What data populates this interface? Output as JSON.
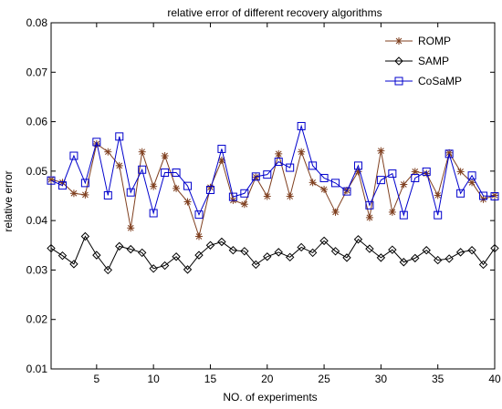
{
  "chart_data": {
    "type": "line",
    "title": "relative error of different recovery algorithms",
    "xlabel": "NO. of experiments",
    "ylabel": "relative error",
    "xlim": [
      1,
      40
    ],
    "ylim": [
      0.01,
      0.08
    ],
    "xticks": [
      5,
      10,
      15,
      20,
      25,
      30,
      35,
      40
    ],
    "yticks": [
      0.01,
      0.02,
      0.03,
      0.04,
      0.05,
      0.06,
      0.07,
      0.08
    ],
    "ytick_labels": [
      "0.01",
      "0.02",
      "0.03",
      "0.04",
      "0.05",
      "0.06",
      "0.07",
      "0.08"
    ],
    "grid": false,
    "legend_position": "top-right",
    "x": [
      1,
      2,
      3,
      4,
      5,
      6,
      7,
      8,
      9,
      10,
      11,
      12,
      13,
      14,
      15,
      16,
      17,
      18,
      19,
      20,
      21,
      22,
      23,
      24,
      25,
      26,
      27,
      28,
      29,
      30,
      31,
      32,
      33,
      34,
      35,
      36,
      37,
      38,
      39,
      40
    ],
    "series": [
      {
        "name": "ROMP",
        "color": "#7f3f1f",
        "marker": "asterisk",
        "values": [
          0.0483,
          0.0477,
          0.0455,
          0.0452,
          0.0555,
          0.0539,
          0.0511,
          0.0385,
          0.0539,
          0.0469,
          0.0531,
          0.0465,
          0.0438,
          0.0368,
          0.0467,
          0.0522,
          0.0441,
          0.0433,
          0.0488,
          0.0449,
          0.0535,
          0.0449,
          0.0539,
          0.0477,
          0.0463,
          0.0417,
          0.0461,
          0.0499,
          0.0406,
          0.0541,
          0.0417,
          0.0473,
          0.0499,
          0.0495,
          0.0451,
          0.0537,
          0.0499,
          0.0477,
          0.0443,
          0.0451
        ]
      },
      {
        "name": "SAMP",
        "color": "#000000",
        "marker": "diamond",
        "values": [
          0.0344,
          0.0329,
          0.0312,
          0.0368,
          0.033,
          0.03,
          0.0348,
          0.0342,
          0.0335,
          0.0303,
          0.0309,
          0.0327,
          0.0301,
          0.033,
          0.035,
          0.0357,
          0.034,
          0.0338,
          0.0311,
          0.0327,
          0.0336,
          0.0326,
          0.0346,
          0.0335,
          0.0359,
          0.0338,
          0.0325,
          0.0362,
          0.0343,
          0.0325,
          0.0341,
          0.0316,
          0.0324,
          0.034,
          0.032,
          0.0323,
          0.0336,
          0.034,
          0.0311,
          0.0344
        ]
      },
      {
        "name": "CoSaMP",
        "color": "#0000cc",
        "marker": "square",
        "values": [
          0.0481,
          0.0471,
          0.0531,
          0.0476,
          0.0559,
          0.0451,
          0.057,
          0.0457,
          0.0503,
          0.0415,
          0.0497,
          0.0497,
          0.047,
          0.0412,
          0.0462,
          0.0545,
          0.0448,
          0.0455,
          0.0489,
          0.0493,
          0.0519,
          0.0507,
          0.0591,
          0.0511,
          0.0486,
          0.0476,
          0.0459,
          0.0511,
          0.0431,
          0.0482,
          0.0495,
          0.0411,
          0.0486,
          0.0499,
          0.0411,
          0.0535,
          0.0455,
          0.0491,
          0.045,
          0.0449
        ]
      }
    ]
  }
}
